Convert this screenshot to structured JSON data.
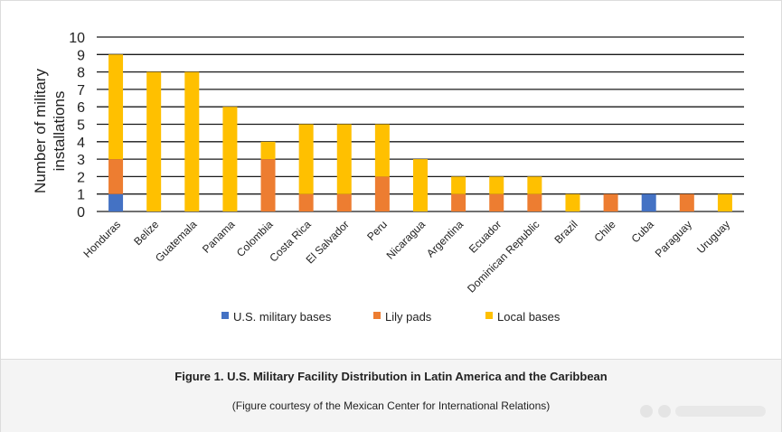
{
  "chart_data": {
    "type": "bar",
    "stacked": true,
    "ylabel": "Number of military installations",
    "ylim": [
      0,
      10
    ],
    "yticks": [
      0,
      1,
      2,
      3,
      4,
      5,
      6,
      7,
      8,
      9,
      10
    ],
    "grid": true,
    "legend_position": "bottom",
    "categories": [
      "Honduras",
      "Belize",
      "Guatemala",
      "Panama",
      "Colombia",
      "Costa Rica",
      "El Salvador",
      "Peru",
      "Nicaragua",
      "Argentina",
      "Ecuador",
      "Dominican Republic",
      "Brazil",
      "Chile",
      "Cuba",
      "Paraguay",
      "Uruguay"
    ],
    "series": [
      {
        "name": "U.S. military bases",
        "color": "#4472c4",
        "values": [
          1,
          0,
          0,
          0,
          0,
          0,
          0,
          0,
          0,
          0,
          0,
          0,
          0,
          0,
          1,
          0,
          0
        ]
      },
      {
        "name": "Lily pads",
        "color": "#ed7d31",
        "values": [
          2,
          0,
          0,
          0,
          3,
          1,
          1,
          2,
          0,
          1,
          1,
          1,
          0,
          1,
          0,
          1,
          0
        ]
      },
      {
        "name": "Local bases",
        "color": "#ffc000",
        "values": [
          6,
          8,
          8,
          6,
          1,
          4,
          4,
          3,
          3,
          1,
          1,
          1,
          1,
          0,
          0,
          0,
          1
        ]
      }
    ]
  },
  "caption": {
    "title": "Figure 1. U.S. Military Facility Distribution in Latin America and the Caribbean",
    "credit": "(Figure courtesy of the Mexican Center for International Relations)"
  }
}
